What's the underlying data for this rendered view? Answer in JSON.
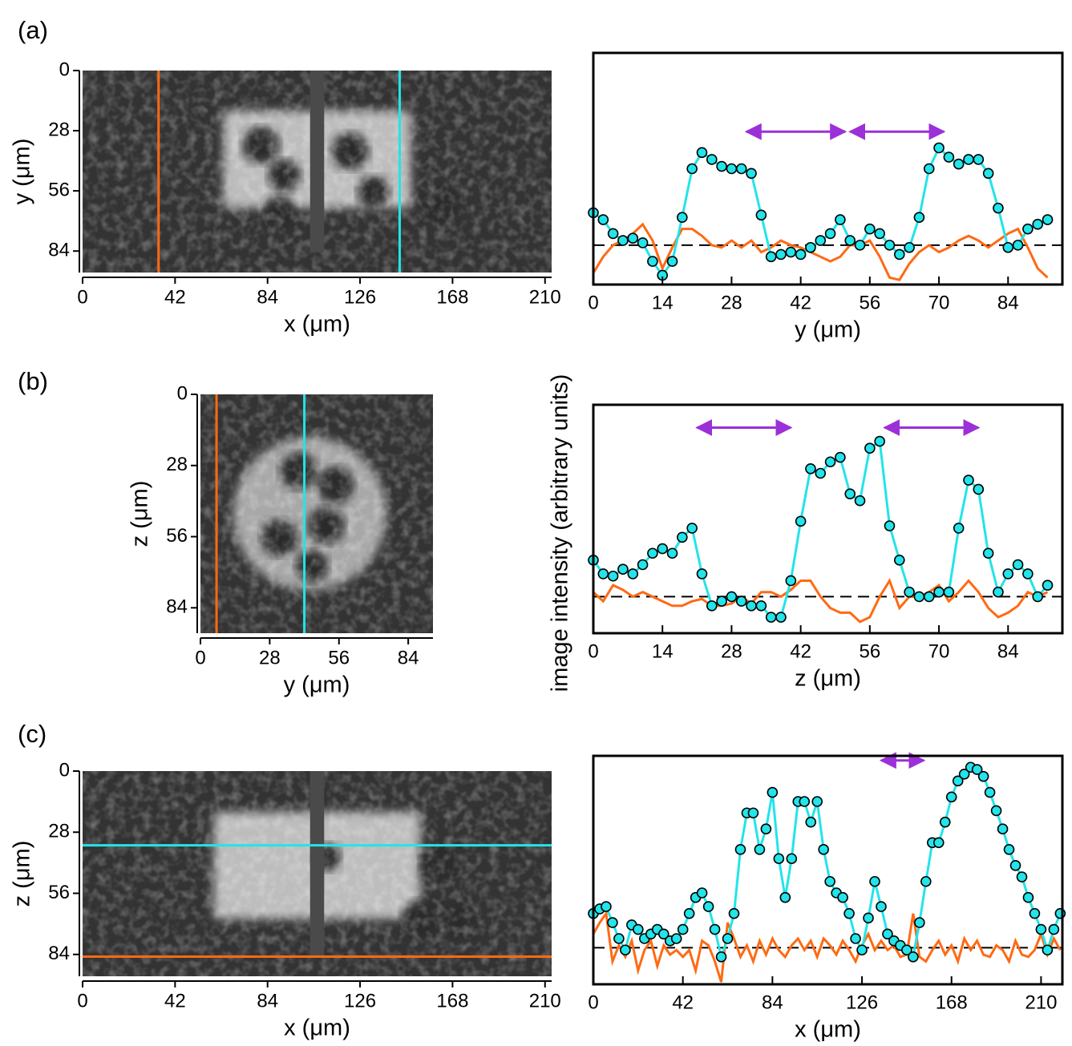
{
  "panel_labels": [
    "(a)",
    "(b)",
    "(c)"
  ],
  "ylabel": "image intensity (arbitrary units)",
  "chart_data": [
    {
      "type": "image",
      "xlabel": "x (μm)",
      "ylabel": "y (μm)",
      "xlim": [
        0,
        213
      ],
      "ylim": [
        0,
        94
      ],
      "y_inverted": true,
      "xticks": [
        0,
        42,
        84,
        126,
        168,
        210
      ],
      "yticks": [
        0,
        28,
        56,
        84
      ],
      "lines": [
        {
          "orientation": "vertical",
          "value": 34.5,
          "color": "#ff6a13"
        },
        {
          "orientation": "vertical",
          "value": 144,
          "color": "#22e4ea"
        }
      ]
    },
    {
      "type": "line",
      "xlabel": "y (μm)",
      "xlim": [
        0,
        95
      ],
      "ylim": [
        0,
        100
      ],
      "xticks": [
        0,
        14,
        28,
        42,
        56,
        70,
        84
      ],
      "x": [
        0,
        2,
        4,
        6,
        8,
        10,
        12,
        14,
        16,
        18,
        20,
        22,
        24,
        26,
        28,
        30,
        32,
        34,
        36,
        38,
        40,
        42,
        44,
        46,
        48,
        50,
        52,
        54,
        56,
        58,
        60,
        62,
        64,
        66,
        68,
        70,
        72,
        74,
        76,
        78,
        80,
        82,
        84,
        86,
        88,
        90,
        92
      ],
      "series": [
        {
          "color": "#22e4ea",
          "marker": "circle",
          "values": [
            31,
            28,
            22,
            19,
            20,
            18,
            10,
            4,
            10,
            29,
            50,
            57,
            54,
            51,
            50,
            50,
            48,
            30,
            12,
            13,
            14,
            13,
            16,
            19,
            22,
            28,
            19,
            17,
            24,
            22,
            17,
            13,
            16,
            29,
            50,
            59,
            55,
            52,
            54,
            54,
            48,
            33,
            16,
            17,
            24,
            26,
            28
          ]
        },
        {
          "color": "#ff6a13",
          "values": [
            5,
            12,
            17,
            19,
            22,
            26,
            19,
            7,
            16,
            24,
            24,
            21,
            17,
            16,
            19,
            16,
            19,
            14,
            16,
            19,
            17,
            16,
            14,
            12,
            10,
            12,
            17,
            17,
            19,
            12,
            3,
            2,
            9,
            14,
            17,
            14,
            16,
            19,
            21,
            19,
            16,
            19,
            22,
            24,
            16,
            7,
            3
          ]
        }
      ],
      "baseline": 17,
      "arrow_level": 66,
      "arrow_color": "#9b30d9",
      "arrows": [
        [
          31,
          51
        ],
        [
          52,
          71
        ]
      ]
    },
    {
      "type": "image",
      "xlabel": "y (μm)",
      "ylabel": "z (μm)",
      "xlim": [
        0,
        94
      ],
      "ylim": [
        0,
        94
      ],
      "y_inverted": true,
      "xticks": [
        0,
        28,
        56,
        84
      ],
      "yticks": [
        0,
        28,
        56,
        84
      ],
      "lines": [
        {
          "orientation": "vertical",
          "value": 6.5,
          "color": "#ff6a13"
        },
        {
          "orientation": "vertical",
          "value": 42,
          "color": "#22e4ea"
        }
      ]
    },
    {
      "type": "line",
      "xlabel": "z (μm)",
      "xlim": [
        0,
        95
      ],
      "ylim": [
        0,
        100
      ],
      "xticks": [
        0,
        14,
        28,
        42,
        56,
        70,
        84
      ],
      "x": [
        0,
        2,
        4,
        6,
        8,
        10,
        12,
        14,
        16,
        18,
        20,
        22,
        24,
        26,
        28,
        30,
        32,
        34,
        36,
        38,
        40,
        42,
        44,
        46,
        48,
        50,
        52,
        54,
        56,
        58,
        60,
        62,
        64,
        66,
        68,
        70,
        72,
        74,
        76,
        78,
        80,
        82,
        84,
        86,
        88,
        90,
        92
      ],
      "series": [
        {
          "color": "#22e4ea",
          "marker": "circle",
          "values": [
            32,
            26,
            25,
            28,
            26,
            30,
            35,
            37,
            35,
            42,
            46,
            26,
            12,
            14,
            16,
            14,
            12,
            12,
            7,
            7,
            23,
            49,
            72,
            70,
            75,
            77,
            61,
            58,
            81,
            84,
            47,
            32,
            18,
            16,
            16,
            18,
            18,
            46,
            67,
            63,
            35,
            18,
            26,
            30,
            26,
            16,
            21
          ]
        },
        {
          "color": "#ff6a13",
          "values": [
            18,
            14,
            21,
            19,
            16,
            18,
            16,
            14,
            12,
            12,
            14,
            15,
            12,
            12,
            13,
            16,
            13,
            18,
            18,
            16,
            19,
            23,
            23,
            16,
            11,
            9,
            9,
            5,
            7,
            16,
            23,
            11,
            16,
            16,
            18,
            21,
            14,
            18,
            23,
            18,
            11,
            7,
            9,
            12,
            18,
            16,
            18
          ]
        }
      ],
      "baseline": 16,
      "arrow_level": 90,
      "arrow_color": "#9b30d9",
      "arrows": [
        [
          21,
          40
        ],
        [
          59,
          78
        ]
      ]
    },
    {
      "type": "image",
      "xlabel": "x (μm)",
      "ylabel": "z (μm)",
      "xlim": [
        0,
        213
      ],
      "ylim": [
        0,
        94
      ],
      "y_inverted": true,
      "xticks": [
        0,
        42,
        84,
        126,
        168,
        210
      ],
      "yticks": [
        0,
        28,
        56,
        84
      ],
      "lines": [
        {
          "orientation": "horizontal",
          "value": 34,
          "color": "#22e4ea"
        },
        {
          "orientation": "horizontal",
          "value": 85,
          "color": "#ff6a13"
        }
      ]
    },
    {
      "type": "line",
      "xlabel": "x (μm)",
      "xlim": [
        0,
        220
      ],
      "ylim": [
        0,
        100
      ],
      "xticks": [
        0,
        42,
        84,
        126,
        168,
        210
      ],
      "x": [
        0,
        3,
        6,
        9,
        12,
        15,
        18,
        21,
        24,
        27,
        30,
        33,
        36,
        39,
        42,
        45,
        48,
        51,
        54,
        57,
        60,
        63,
        66,
        69,
        72,
        75,
        78,
        81,
        84,
        87,
        90,
        93,
        96,
        99,
        102,
        105,
        108,
        111,
        114,
        117,
        120,
        123,
        126,
        129,
        132,
        135,
        138,
        141,
        144,
        147,
        150,
        153,
        156,
        159,
        162,
        165,
        168,
        171,
        174,
        177,
        180,
        183,
        186,
        189,
        192,
        195,
        198,
        201,
        204,
        207,
        210,
        213,
        216,
        219
      ],
      "series": [
        {
          "color": "#22e4ea",
          "marker": "circle",
          "values": [
            31,
            33,
            34,
            27,
            20,
            15,
            26,
            24,
            20,
            22,
            24,
            22,
            19,
            20,
            24,
            31,
            38,
            40,
            34,
            24,
            12,
            20,
            31,
            59,
            75,
            75,
            59,
            68,
            84,
            55,
            38,
            55,
            80,
            80,
            71,
            80,
            59,
            45,
            40,
            38,
            31,
            20,
            15,
            29,
            45,
            34,
            22,
            19,
            17,
            15,
            12,
            27,
            45,
            62,
            62,
            71,
            82,
            89,
            92,
            95,
            94,
            91,
            84,
            76,
            68,
            59,
            52,
            47,
            38,
            31,
            24,
            15,
            24,
            31
          ]
        },
        {
          "color": "#ff6a13",
          "values": [
            22,
            27,
            31,
            10,
            17,
            12,
            19,
            6,
            15,
            19,
            8,
            17,
            13,
            15,
            12,
            15,
            6,
            19,
            17,
            10,
            1,
            27,
            20,
            12,
            17,
            10,
            19,
            13,
            20,
            15,
            12,
            17,
            20,
            15,
            19,
            12,
            20,
            17,
            13,
            19,
            15,
            10,
            17,
            22,
            15,
            19,
            15,
            17,
            12,
            13,
            31,
            12,
            10,
            15,
            19,
            13,
            17,
            10,
            20,
            15,
            19,
            13,
            12,
            17,
            15,
            10,
            19,
            13,
            12,
            15,
            22,
            13,
            20,
            15
          ]
        }
      ],
      "baseline": 16,
      "arrow_level": 98,
      "arrow_color": "#9b30d9",
      "arrows": [
        [
          135,
          155
        ]
      ]
    }
  ]
}
